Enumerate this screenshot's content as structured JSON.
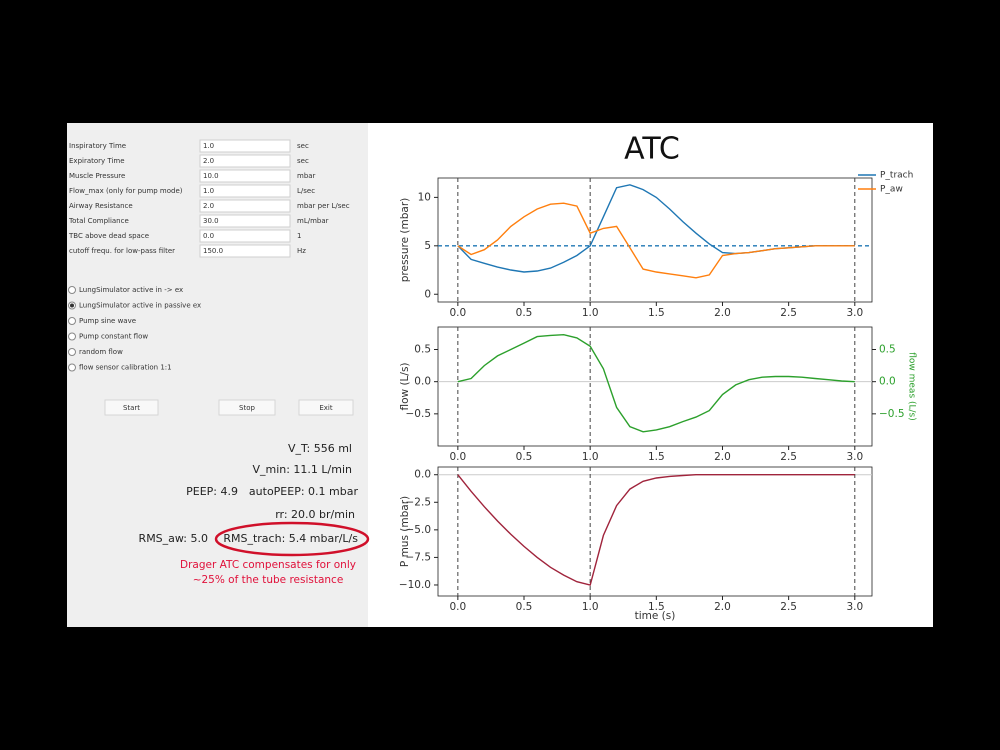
{
  "form": {
    "fields": [
      {
        "label": "Inspiratory Time",
        "value": "1.0",
        "unit": "sec"
      },
      {
        "label": "Expiratory Time",
        "value": "2.0",
        "unit": "sec"
      },
      {
        "label": "Muscle Pressure",
        "value": "10.0",
        "unit": "mbar"
      },
      {
        "label": "Flow_max (only for pump mode)",
        "value": "1.0",
        "unit": "L/sec"
      },
      {
        "label": "Airway Resistance",
        "value": "2.0",
        "unit": "mbar per L/sec"
      },
      {
        "label": "Total Compliance",
        "value": "30.0",
        "unit": "mL/mbar"
      },
      {
        "label": "TBC above dead space",
        "value": "0.0",
        "unit": "1"
      },
      {
        "label": "cutoff frequ. for low-pass filter",
        "value": "150.0",
        "unit": "Hz"
      }
    ],
    "modes": [
      {
        "label": "LungSimulator active in -> ex",
        "selected": false
      },
      {
        "label": "LungSimulator active in passive ex",
        "selected": true
      },
      {
        "label": "Pump sine wave",
        "selected": false
      },
      {
        "label": "Pump constant flow",
        "selected": false
      },
      {
        "label": "random flow",
        "selected": false
      },
      {
        "label": "flow sensor calibration 1:1",
        "selected": false
      }
    ],
    "buttons": [
      "Start",
      "Stop",
      "Exit"
    ]
  },
  "stats": {
    "v_t": "V_T: 556 ml",
    "v_min": "V_min: 11.1 L/min",
    "peep": "PEEP: 4.9",
    "auto_peep": "autoPEEP: 0.1 mbar",
    "rr": "rr: 20.0 br/min",
    "rms_aw": "RMS_aw: 5.0",
    "rms_trach": "RMS_trach: 5.4 mbar/L/s"
  },
  "annotation": [
    "Drager ATC compensates for only",
    "~25% of the tube resistance"
  ],
  "chart_data": [
    {
      "type": "line",
      "title": "ATC",
      "ylabel": "pressure (mbar)",
      "x": [
        0,
        0.1,
        0.2,
        0.3,
        0.4,
        0.5,
        0.6,
        0.7,
        0.8,
        0.9,
        1.0,
        1.1,
        1.2,
        1.3,
        1.4,
        1.5,
        1.6,
        1.7,
        1.8,
        1.9,
        2.0,
        2.1,
        2.2,
        2.3,
        2.4,
        2.5,
        2.6,
        2.7,
        2.8,
        2.9,
        3.0
      ],
      "series": [
        {
          "name": "P_trach",
          "color": "#1f77b4",
          "values": [
            5,
            3.6,
            3.2,
            2.8,
            2.5,
            2.3,
            2.4,
            2.7,
            3.3,
            4.0,
            5.0,
            8.0,
            11.0,
            11.3,
            10.8,
            10.0,
            8.8,
            7.5,
            6.3,
            5.2,
            4.3,
            4.2,
            4.3,
            4.5,
            4.7,
            4.8,
            4.9,
            5.0,
            5.0,
            5.0,
            5.0
          ]
        },
        {
          "name": "P_aw",
          "color": "#ff7f0e",
          "values": [
            5,
            4.1,
            4.6,
            5.6,
            7.0,
            8.0,
            8.8,
            9.3,
            9.4,
            9.1,
            6.3,
            6.8,
            7.0,
            4.8,
            2.6,
            2.3,
            2.1,
            1.9,
            1.7,
            2.0,
            4.0,
            4.2,
            4.3,
            4.5,
            4.7,
            4.8,
            4.9,
            5.0,
            5.0,
            5.0,
            5.0
          ]
        }
      ],
      "xlim": [
        -0.15,
        3.13
      ],
      "ylim": [
        -0.8,
        12
      ],
      "xticks": [
        {
          "value": 0,
          "label": "0.0"
        },
        0.5,
        {
          "value": 1,
          "label": "1.0"
        },
        1.5,
        {
          "value": 2,
          "label": "2.0"
        },
        2.5,
        {
          "value": 3,
          "label": "3.0"
        }
      ],
      "yticks": [
        0,
        5,
        10
      ],
      "hline": 5,
      "hline_color": "#1f77b4",
      "hline_style": "dashed",
      "vlines": [
        0,
        1,
        3
      ],
      "legend": "upper right"
    },
    {
      "type": "line",
      "ylabel": "flow (L/s)",
      "y2label": "flow meas (L/s)",
      "x": [
        0,
        0.1,
        0.2,
        0.3,
        0.4,
        0.5,
        0.6,
        0.7,
        0.8,
        0.9,
        1.0,
        1.1,
        1.2,
        1.3,
        1.4,
        1.5,
        1.6,
        1.7,
        1.8,
        1.9,
        2.0,
        2.1,
        2.2,
        2.3,
        2.4,
        2.5,
        2.6,
        2.7,
        2.8,
        2.9,
        3.0
      ],
      "series": [
        {
          "color": "#2ca02c",
          "values": [
            0,
            0.05,
            0.25,
            0.4,
            0.5,
            0.6,
            0.7,
            0.72,
            0.73,
            0.68,
            0.55,
            0.2,
            -0.4,
            -0.7,
            -0.78,
            -0.75,
            -0.7,
            -0.62,
            -0.55,
            -0.45,
            -0.2,
            -0.05,
            0.03,
            0.07,
            0.08,
            0.08,
            0.07,
            0.05,
            0.03,
            0.01,
            0
          ]
        }
      ],
      "xlim": [
        -0.15,
        3.13
      ],
      "ylim": [
        -1.0,
        0.85
      ],
      "y2lim": [
        -1.0,
        0.85
      ],
      "xticks": [
        {
          "value": 0,
          "label": "0.0"
        },
        0.5,
        {
          "value": 1,
          "label": "1.0"
        },
        1.5,
        {
          "value": 2,
          "label": "2.0"
        },
        2.5,
        {
          "value": 3,
          "label": "3.0"
        }
      ],
      "yticks": [
        {
          "value": -0.5,
          "label": "−0.5"
        },
        {
          "value": 0,
          "label": "0.0"
        },
        0.5
      ],
      "y2ticks": [
        {
          "value": -0.5,
          "label": "−0.5"
        },
        {
          "value": 0,
          "label": "0.0"
        },
        0.5
      ],
      "y2color": "#2ca02c",
      "hline": 0,
      "hline_color": "#cccccc",
      "hline_style": "solid",
      "vlines": [
        0,
        1,
        3
      ]
    },
    {
      "type": "line",
      "ylabel": "P mus (mbar)",
      "xlabel": "time (s)",
      "x": [
        0,
        0.1,
        0.2,
        0.3,
        0.4,
        0.5,
        0.6,
        0.7,
        0.8,
        0.9,
        1.0,
        1.1,
        1.2,
        1.3,
        1.4,
        1.5,
        1.6,
        1.7,
        1.8,
        1.9,
        2.0,
        2.1,
        2.2,
        2.3,
        2.4,
        2.5,
        2.6,
        2.7,
        2.8,
        2.9,
        3.0
      ],
      "series": [
        {
          "color": "#a0243c",
          "values": [
            0,
            -1.5,
            -2.9,
            -4.2,
            -5.4,
            -6.5,
            -7.5,
            -8.4,
            -9.1,
            -9.7,
            -10,
            -5.5,
            -2.8,
            -1.3,
            -0.6,
            -0.3,
            -0.15,
            -0.07,
            0,
            0,
            0,
            0,
            0,
            0,
            0,
            0,
            0,
            0,
            0,
            0,
            0
          ]
        }
      ],
      "xlim": [
        -0.15,
        3.13
      ],
      "ylim": [
        -11,
        0.7
      ],
      "xticks": [
        {
          "value": 0,
          "label": "0.0"
        },
        0.5,
        {
          "value": 1,
          "label": "1.0"
        },
        1.5,
        {
          "value": 2,
          "label": "2.0"
        },
        2.5,
        {
          "value": 3,
          "label": "3.0"
        }
      ],
      "yticks": [
        {
          "value": -10,
          "label": "−10.0"
        },
        {
          "value": -7.5,
          "label": "−7.5"
        },
        {
          "value": -5,
          "label": "−5.0"
        },
        {
          "value": -2.5,
          "label": "−2.5"
        },
        {
          "value": 0,
          "label": "0.0"
        }
      ],
      "hline": 0,
      "hline_color": "#cccccc",
      "hline_style": "solid",
      "vlines": [
        0,
        1,
        3
      ]
    }
  ]
}
